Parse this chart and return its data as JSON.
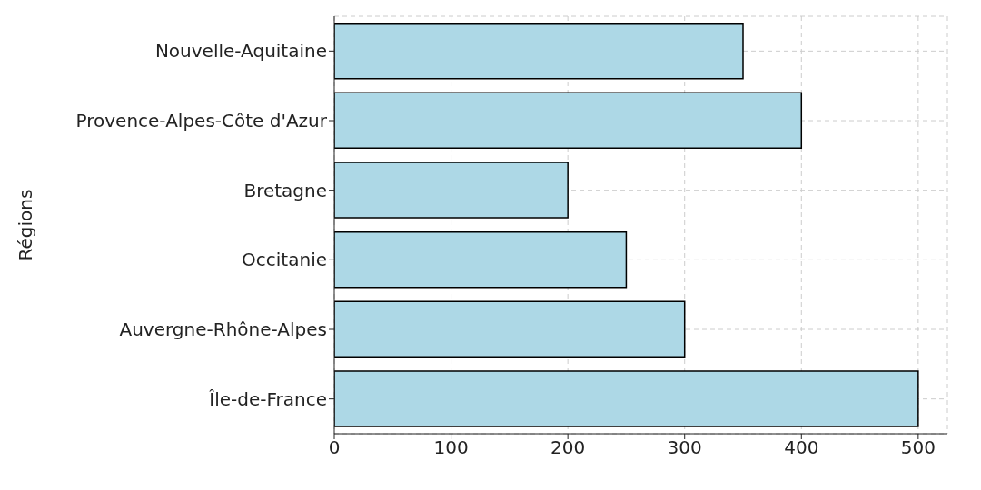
{
  "chart_data": {
    "type": "bar",
    "orientation": "horizontal",
    "ylabel": "Régions",
    "categories": [
      "Nouvelle-Aquitaine",
      "Provence-Alpes-Côte d'Azur",
      "Bretagne",
      "Occitanie",
      "Auvergne-Rhône-Alpes",
      "Île-de-France"
    ],
    "values": [
      350,
      400,
      200,
      250,
      300,
      500
    ],
    "color": "#add8e6",
    "xlim": [
      0,
      525
    ],
    "xticks": [
      0,
      100,
      200,
      300,
      400,
      500
    ],
    "grid": true
  }
}
